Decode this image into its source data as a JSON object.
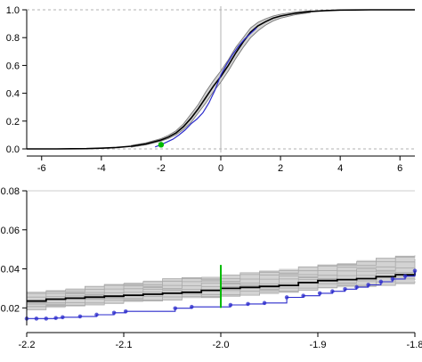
{
  "colors": {
    "background": "#ffffff",
    "axis": "#000000",
    "frame_grey": "#888888",
    "ref_line_grey": "#b0b0b0",
    "band_grey": "#d3d3d3",
    "envelope_line": "#bdbdbd",
    "median_curve": "#000000",
    "empirical": "#2b2bcc",
    "highlight": "#00bb00"
  },
  "chart_data": [
    {
      "id": "top",
      "type": "line",
      "title": "",
      "xlabel": "",
      "ylabel": "",
      "xlim": [
        -6.5,
        6.5
      ],
      "ylim": [
        0,
        1
      ],
      "xticks": [
        -6,
        -4,
        -2,
        0,
        2,
        4,
        6
      ],
      "xtick_labels": [
        "-6",
        "-4",
        "-2",
        "0",
        "2",
        "4",
        "6"
      ],
      "yticks": [
        0.0,
        0.2,
        0.4,
        0.6,
        0.8,
        1.0
      ],
      "ytick_labels": [
        "0.0",
        "0.2",
        "0.4",
        "0.6",
        "0.8",
        "1.0"
      ],
      "hlines": [
        0,
        1
      ],
      "vline": 0,
      "series": [
        {
          "role": "reference_cdf",
          "x": [
            -6.5,
            -6,
            -5.5,
            -5,
            -4.5,
            -4,
            -3.5,
            -3,
            -2.5,
            -2,
            -1.75,
            -1.5,
            -1.25,
            -1,
            -0.75,
            -0.5,
            -0.25,
            0,
            0.25,
            0.5,
            0.75,
            1,
            1.25,
            1.5,
            1.75,
            2,
            2.5,
            3,
            3.5,
            4,
            4.5,
            5,
            5.5,
            6,
            6.5
          ],
          "y": [
            0.0,
            0.0,
            0.0,
            0.001,
            0.002,
            0.005,
            0.01,
            0.019,
            0.036,
            0.064,
            0.085,
            0.115,
            0.16,
            0.22,
            0.29,
            0.37,
            0.45,
            0.52,
            0.6,
            0.69,
            0.77,
            0.84,
            0.885,
            0.915,
            0.94,
            0.955,
            0.975,
            0.988,
            0.994,
            0.998,
            0.999,
            1.0,
            1.0,
            1.0,
            1.0
          ]
        },
        {
          "role": "envelope_band",
          "x": [
            -3,
            -2.5,
            -2,
            -1.75,
            -1.5,
            -1.25,
            -1,
            -0.75,
            -0.5,
            -0.25,
            0,
            0.25,
            0.5,
            0.75,
            1,
            1.25,
            1.5,
            1.75,
            2,
            2.5,
            3
          ],
          "lower": [
            0.013,
            0.03,
            0.056,
            0.075,
            0.102,
            0.14,
            0.19,
            0.26,
            0.33,
            0.41,
            0.48,
            0.56,
            0.65,
            0.73,
            0.8,
            0.85,
            0.89,
            0.92,
            0.94,
            0.965,
            0.98
          ],
          "upper": [
            0.025,
            0.044,
            0.074,
            0.098,
            0.13,
            0.18,
            0.25,
            0.32,
            0.41,
            0.49,
            0.56,
            0.64,
            0.73,
            0.8,
            0.87,
            0.91,
            0.935,
            0.955,
            0.968,
            0.984,
            0.993
          ]
        },
        {
          "role": "empirical_cdf",
          "x": [
            -2.2,
            -2.0,
            -1.8,
            -1.6,
            -1.4,
            -1.2,
            -1.0,
            -0.8,
            -0.6,
            -0.4,
            -0.2,
            0.0,
            0.2,
            0.4,
            0.6,
            0.8,
            1.0,
            1.2
          ],
          "y": [
            0.014,
            0.03,
            0.05,
            0.07,
            0.1,
            0.135,
            0.18,
            0.215,
            0.26,
            0.33,
            0.42,
            0.53,
            0.61,
            0.68,
            0.74,
            0.79,
            0.83,
            0.87
          ]
        }
      ],
      "highlight": {
        "x": -2.0,
        "y": 0.03
      }
    },
    {
      "id": "bottom",
      "type": "line",
      "title": "",
      "xlabel": "",
      "ylabel": "",
      "xlim": [
        -2.2,
        -1.8
      ],
      "ylim": [
        0.011,
        0.08
      ],
      "xticks": [
        -2.2,
        -2.1,
        -2.0,
        -1.9,
        -1.8
      ],
      "xtick_labels": [
        "-2.2",
        "-2.1",
        "-2.0",
        "-1.9",
        "-1.8"
      ],
      "yticks": [
        0.02,
        0.04,
        0.06,
        0.08
      ],
      "ytick_labels": [
        "0.02",
        "0.04",
        "0.06",
        "0.08"
      ],
      "envelope": {
        "steps": [
          -2.2,
          -2.18,
          -2.16,
          -2.14,
          -2.12,
          -2.1,
          -2.08,
          -2.06,
          -2.04,
          -2.02,
          -2.0,
          -1.98,
          -1.96,
          -1.94,
          -1.92,
          -1.9,
          -1.88,
          -1.86,
          -1.84,
          -1.82,
          -1.8
        ],
        "lower": [
          0.019,
          0.02,
          0.021,
          0.0215,
          0.022,
          0.023,
          0.0235,
          0.024,
          0.025,
          0.025,
          0.026,
          0.0265,
          0.027,
          0.028,
          0.029,
          0.03,
          0.0305,
          0.031,
          0.0315,
          0.032,
          0.033
        ],
        "upper": [
          0.028,
          0.029,
          0.03,
          0.031,
          0.032,
          0.033,
          0.034,
          0.035,
          0.0355,
          0.036,
          0.037,
          0.038,
          0.039,
          0.04,
          0.041,
          0.042,
          0.043,
          0.0445,
          0.0455,
          0.0465,
          0.048
        ]
      },
      "median": {
        "x": [
          -2.2,
          -2.18,
          -2.16,
          -2.14,
          -2.12,
          -2.1,
          -2.08,
          -2.06,
          -2.04,
          -2.02,
          -2.0,
          -1.98,
          -1.96,
          -1.94,
          -1.92,
          -1.9,
          -1.88,
          -1.86,
          -1.84,
          -1.82,
          -1.8
        ],
        "y": [
          0.0235,
          0.0245,
          0.025,
          0.0255,
          0.026,
          0.0265,
          0.027,
          0.0275,
          0.028,
          0.029,
          0.03,
          0.0305,
          0.031,
          0.0315,
          0.033,
          0.034,
          0.0345,
          0.035,
          0.036,
          0.037,
          0.039
        ]
      },
      "empirical": {
        "points": [
          {
            "x": -2.2,
            "y": 0.0145
          },
          {
            "x": -2.19,
            "y": 0.0145
          },
          {
            "x": -2.18,
            "y": 0.0145
          },
          {
            "x": -2.17,
            "y": 0.0148
          },
          {
            "x": -2.163,
            "y": 0.0152
          },
          {
            "x": -2.145,
            "y": 0.0156
          },
          {
            "x": -2.128,
            "y": 0.0165
          },
          {
            "x": -2.11,
            "y": 0.0175
          },
          {
            "x": -2.098,
            "y": 0.0182
          },
          {
            "x": -2.047,
            "y": 0.0198
          },
          {
            "x": -2.03,
            "y": 0.0205
          },
          {
            "x": -1.99,
            "y": 0.0215
          },
          {
            "x": -1.972,
            "y": 0.022
          },
          {
            "x": -1.955,
            "y": 0.0225
          },
          {
            "x": -1.932,
            "y": 0.0254
          },
          {
            "x": -1.915,
            "y": 0.0262
          },
          {
            "x": -1.898,
            "y": 0.0275
          },
          {
            "x": -1.885,
            "y": 0.0285
          },
          {
            "x": -1.872,
            "y": 0.0296
          },
          {
            "x": -1.86,
            "y": 0.0306
          },
          {
            "x": -1.848,
            "y": 0.0318
          },
          {
            "x": -1.835,
            "y": 0.0334
          },
          {
            "x": -1.823,
            "y": 0.0348
          },
          {
            "x": -1.81,
            "y": 0.0363
          },
          {
            "x": -1.8,
            "y": 0.039
          }
        ]
      },
      "marker": {
        "x": -2.0,
        "ylow": 0.02,
        "yhigh": 0.042
      }
    }
  ]
}
